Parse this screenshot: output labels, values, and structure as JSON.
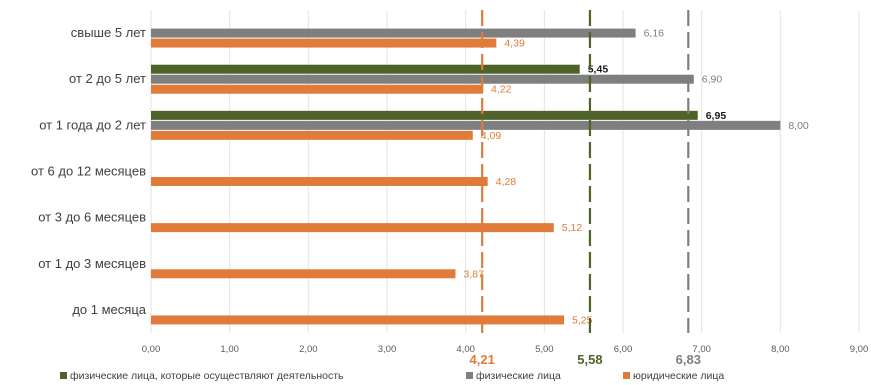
{
  "chart_data": {
    "type": "bar",
    "orientation": "horizontal",
    "categories": [
      "свыше 5 лет",
      "от 2 до 5 лет",
      "от 1 года до 2 лет",
      "от 6 до 12 месяцев",
      "от 3 до 6 месяцев",
      "от 1 до 3 месяцев",
      "до 1 месяца"
    ],
    "series": [
      {
        "name": "физические лица, которые осуществляют деятельность",
        "color": "#4f6228",
        "values": [
          null,
          5.45,
          6.95,
          null,
          null,
          null,
          null
        ],
        "labels": [
          "",
          "5,45",
          "6,95",
          "",
          "",
          "",
          ""
        ]
      },
      {
        "name": "физические лица",
        "color": "#7f7f7f",
        "values": [
          6.16,
          6.9,
          8.0,
          null,
          null,
          null,
          null
        ],
        "labels": [
          "6,16",
          "6,90",
          "8,00",
          "",
          "",
          "",
          ""
        ]
      },
      {
        "name": "юридические лица",
        "color": "#e07b39",
        "values": [
          4.39,
          4.22,
          4.09,
          4.28,
          5.12,
          3.87,
          5.25
        ],
        "labels": [
          "4,39",
          "4,22",
          "4,09",
          "4,28",
          "5,12",
          "3,87",
          "5,25"
        ]
      }
    ],
    "reference_lines": [
      {
        "value": 4.21,
        "label": "4,21",
        "color": "#e07b39"
      },
      {
        "value": 5.58,
        "label": "5,58",
        "color": "#4f6228"
      },
      {
        "value": 6.83,
        "label": "6,83",
        "color": "#7f7f7f"
      }
    ],
    "xlim": [
      0,
      9
    ],
    "xticks": [
      0,
      1,
      2,
      3,
      4,
      5,
      6,
      7,
      8,
      9
    ],
    "xtick_labels": [
      "0,00",
      "1,00",
      "2,00",
      "3,00",
      "4,00",
      "5,00",
      "6,00",
      "7,00",
      "8,00",
      "9,00"
    ],
    "grid": true,
    "legend": "bottom"
  }
}
